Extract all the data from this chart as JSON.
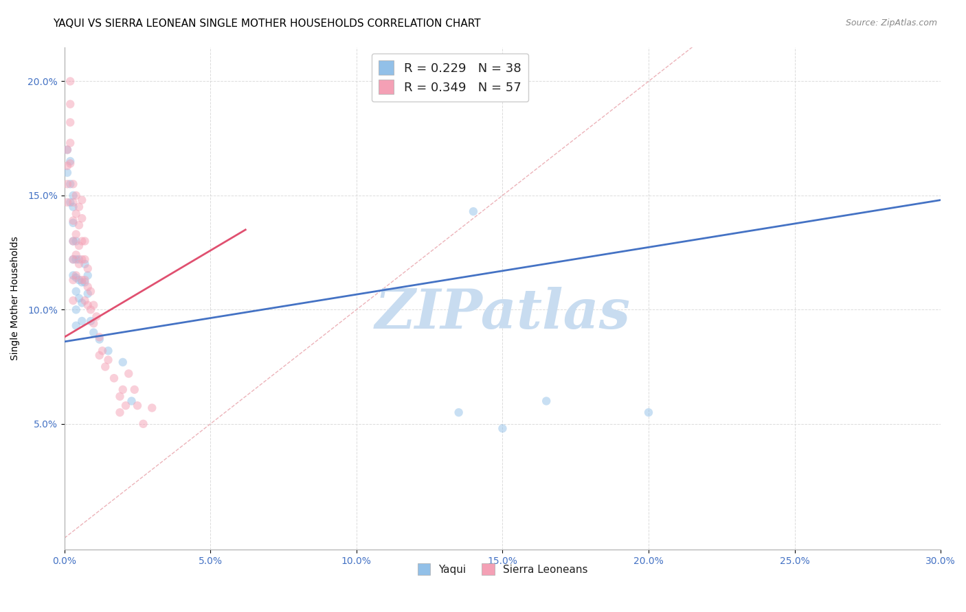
{
  "title": "YAQUI VS SIERRA LEONEAN SINGLE MOTHER HOUSEHOLDS CORRELATION CHART",
  "source": "Source: ZipAtlas.com",
  "ylabel": "Single Mother Households",
  "xlabel_ticks": [
    "0.0%",
    "5.0%",
    "10.0%",
    "15.0%",
    "20.0%",
    "25.0%",
    "30.0%"
  ],
  "xlabel_vals": [
    0.0,
    0.05,
    0.1,
    0.15,
    0.2,
    0.25,
    0.3
  ],
  "ylabel_ticks": [
    "5.0%",
    "10.0%",
    "15.0%",
    "20.0%"
  ],
  "ylabel_vals": [
    0.05,
    0.1,
    0.15,
    0.2
  ],
  "xlim": [
    0.0,
    0.3
  ],
  "ylim": [
    -0.005,
    0.215
  ],
  "legend_label1": "R = 0.229   N = 38",
  "legend_label2": "R = 0.349   N = 57",
  "legend_color1": "#92C0E8",
  "legend_color2": "#F4A0B5",
  "yaqui_color": "#92C0E8",
  "sierra_color": "#F4A0B5",
  "trendline_yaqui_color": "#4472C4",
  "trendline_sierra_color": "#E05070",
  "diagonal_color": "#E8A0A8",
  "watermark_color": "#C8DCF0",
  "watermark_text": "ZIPatlas",
  "yaqui_trendline": [
    [
      0.0,
      0.086
    ],
    [
      0.3,
      0.148
    ]
  ],
  "sierra_trendline": [
    [
      0.0,
      0.088
    ],
    [
      0.062,
      0.135
    ]
  ],
  "diagonal_line": [
    [
      0.0,
      0.0
    ],
    [
      0.215,
      0.215
    ]
  ],
  "yaqui_x": [
    0.001,
    0.001,
    0.002,
    0.002,
    0.002,
    0.003,
    0.003,
    0.003,
    0.003,
    0.003,
    0.003,
    0.004,
    0.004,
    0.004,
    0.004,
    0.004,
    0.004,
    0.005,
    0.005,
    0.005,
    0.006,
    0.006,
    0.006,
    0.007,
    0.007,
    0.008,
    0.008,
    0.009,
    0.01,
    0.012,
    0.015,
    0.02,
    0.023,
    0.14,
    0.165,
    0.2,
    0.135,
    0.15
  ],
  "yaqui_y": [
    0.17,
    0.16,
    0.165,
    0.155,
    0.147,
    0.15,
    0.145,
    0.138,
    0.13,
    0.122,
    0.115,
    0.13,
    0.122,
    0.114,
    0.108,
    0.1,
    0.093,
    0.122,
    0.113,
    0.105,
    0.112,
    0.103,
    0.095,
    0.12,
    0.112,
    0.115,
    0.107,
    0.095,
    0.09,
    0.087,
    0.082,
    0.077,
    0.06,
    0.143,
    0.06,
    0.055,
    0.055,
    0.048
  ],
  "sierra_x": [
    0.001,
    0.001,
    0.001,
    0.001,
    0.002,
    0.002,
    0.002,
    0.002,
    0.002,
    0.003,
    0.003,
    0.003,
    0.003,
    0.003,
    0.003,
    0.003,
    0.004,
    0.004,
    0.004,
    0.004,
    0.004,
    0.005,
    0.005,
    0.005,
    0.005,
    0.006,
    0.006,
    0.006,
    0.006,
    0.006,
    0.007,
    0.007,
    0.007,
    0.007,
    0.008,
    0.008,
    0.008,
    0.009,
    0.009,
    0.01,
    0.01,
    0.011,
    0.012,
    0.012,
    0.013,
    0.014,
    0.015,
    0.017,
    0.019,
    0.019,
    0.02,
    0.021,
    0.022,
    0.024,
    0.025,
    0.027,
    0.03
  ],
  "sierra_y": [
    0.17,
    0.163,
    0.155,
    0.147,
    0.2,
    0.19,
    0.182,
    0.173,
    0.164,
    0.155,
    0.147,
    0.139,
    0.13,
    0.122,
    0.113,
    0.104,
    0.15,
    0.142,
    0.133,
    0.124,
    0.115,
    0.145,
    0.137,
    0.128,
    0.12,
    0.148,
    0.14,
    0.13,
    0.122,
    0.113,
    0.13,
    0.122,
    0.113,
    0.104,
    0.118,
    0.11,
    0.102,
    0.108,
    0.1,
    0.102,
    0.094,
    0.097,
    0.088,
    0.08,
    0.082,
    0.075,
    0.078,
    0.07,
    0.062,
    0.055,
    0.065,
    0.058,
    0.072,
    0.065,
    0.058,
    0.05,
    0.057
  ],
  "background_color": "#FFFFFF",
  "grid_color": "#CCCCCC",
  "title_fontsize": 11,
  "axis_label_fontsize": 10,
  "tick_fontsize": 10,
  "marker_size": 80,
  "marker_alpha": 0.5
}
